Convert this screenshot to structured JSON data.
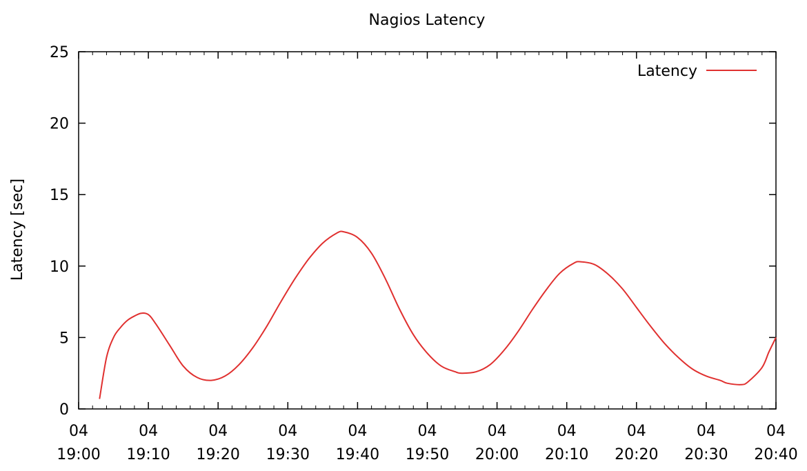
{
  "chart_data": {
    "type": "line",
    "title": "Nagios Latency",
    "ylabel": "Latency [sec]",
    "xlabel": "",
    "ylim": [
      0,
      25
    ],
    "xlim": [
      "04 19:00",
      "04 20:40"
    ],
    "y_ticks": [
      0,
      5,
      10,
      15,
      20,
      25
    ],
    "x_ticks": [
      {
        "day": "04",
        "time": "19:00"
      },
      {
        "day": "04",
        "time": "19:10"
      },
      {
        "day": "04",
        "time": "19:20"
      },
      {
        "day": "04",
        "time": "19:30"
      },
      {
        "day": "04",
        "time": "19:40"
      },
      {
        "day": "04",
        "time": "19:50"
      },
      {
        "day": "04",
        "time": "20:00"
      },
      {
        "day": "04",
        "time": "20:10"
      },
      {
        "day": "04",
        "time": "20:20"
      },
      {
        "day": "04",
        "time": "20:30"
      },
      {
        "day": "04",
        "time": "20:40"
      }
    ],
    "grid": false,
    "legend_position": "top-right",
    "series": [
      {
        "name": "Latency",
        "color": "#e0302f",
        "points": [
          [
            "19:03",
            0.7
          ],
          [
            "19:04",
            3.6
          ],
          [
            "19:05",
            5.0
          ],
          [
            "19:06",
            5.7
          ],
          [
            "19:07",
            6.2
          ],
          [
            "19:08",
            6.5
          ],
          [
            "19:09",
            6.7
          ],
          [
            "19:10",
            6.6
          ],
          [
            "19:11",
            6.0
          ],
          [
            "19:13",
            4.5
          ],
          [
            "19:15",
            3.0
          ],
          [
            "19:17",
            2.2
          ],
          [
            "19:19",
            2.0
          ],
          [
            "19:21",
            2.3
          ],
          [
            "19:23",
            3.1
          ],
          [
            "19:25",
            4.3
          ],
          [
            "19:27",
            5.8
          ],
          [
            "19:29",
            7.5
          ],
          [
            "19:31",
            9.1
          ],
          [
            "19:33",
            10.5
          ],
          [
            "19:35",
            11.6
          ],
          [
            "19:37",
            12.3
          ],
          [
            "19:38",
            12.4
          ],
          [
            "19:40",
            12.0
          ],
          [
            "19:42",
            10.9
          ],
          [
            "19:44",
            9.1
          ],
          [
            "19:46",
            7.0
          ],
          [
            "19:48",
            5.2
          ],
          [
            "19:50",
            3.9
          ],
          [
            "19:52",
            3.0
          ],
          [
            "19:54",
            2.6
          ],
          [
            "19:55",
            2.5
          ],
          [
            "19:57",
            2.6
          ],
          [
            "19:59",
            3.1
          ],
          [
            "20:01",
            4.1
          ],
          [
            "20:03",
            5.4
          ],
          [
            "20:05",
            6.9
          ],
          [
            "20:07",
            8.3
          ],
          [
            "20:09",
            9.5
          ],
          [
            "20:11",
            10.2
          ],
          [
            "20:12",
            10.3
          ],
          [
            "20:14",
            10.1
          ],
          [
            "20:16",
            9.4
          ],
          [
            "20:18",
            8.4
          ],
          [
            "20:20",
            7.1
          ],
          [
            "20:22",
            5.8
          ],
          [
            "20:24",
            4.6
          ],
          [
            "20:26",
            3.6
          ],
          [
            "20:28",
            2.8
          ],
          [
            "20:30",
            2.3
          ],
          [
            "20:32",
            2.0
          ],
          [
            "20:33",
            1.8
          ],
          [
            "20:35",
            1.7
          ],
          [
            "20:36",
            1.9
          ],
          [
            "20:38",
            2.9
          ],
          [
            "20:39",
            4.0
          ],
          [
            "20:40",
            5.0
          ]
        ]
      }
    ]
  }
}
